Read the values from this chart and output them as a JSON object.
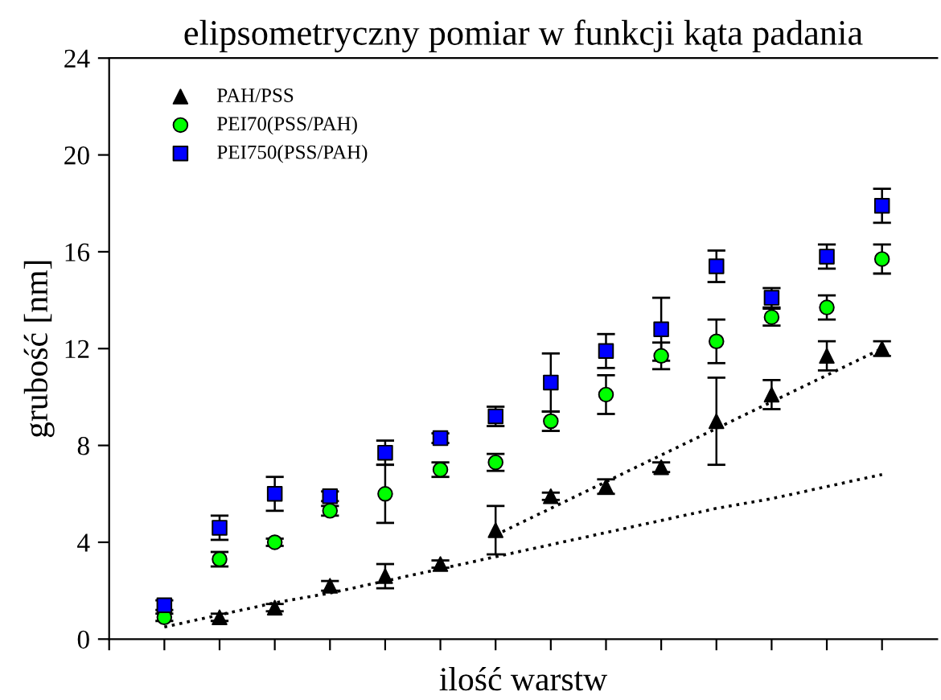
{
  "chart_data": {
    "type": "scatter",
    "title": "elipsometryczny pomiar w funkcji kąta padania",
    "xlabel": "ilość warstw",
    "ylabel": "grubość [nm]",
    "categories": [
      null,
      null,
      null,
      null,
      null,
      null,
      null,
      null,
      null,
      null,
      null,
      null,
      null,
      null
    ],
    "ylim": [
      0,
      24
    ],
    "yticks": [
      0,
      4,
      8,
      12,
      16,
      20,
      24
    ],
    "grid": false,
    "legend": "top left",
    "series": [
      {
        "name": "PAH/PSS",
        "color": "#000000",
        "marker": "triangle",
        "values": [
          null,
          0.9,
          1.3,
          2.2,
          2.6,
          3.1,
          4.5,
          5.9,
          6.3,
          7.1,
          9.0,
          10.1,
          11.7,
          12.0
        ],
        "errors": [
          null,
          0.15,
          0.15,
          0.2,
          0.5,
          0.15,
          1.0,
          0.15,
          0.3,
          0.2,
          1.8,
          0.6,
          0.6,
          0.3
        ]
      },
      {
        "name": "PEI70(PSS/PAH)",
        "color": "#00ff00",
        "marker": "circle",
        "values": [
          0.9,
          3.3,
          4.0,
          5.3,
          6.0,
          7.0,
          7.3,
          9.0,
          10.1,
          11.7,
          12.3,
          13.3,
          13.7,
          15.7
        ],
        "errors": [
          0.15,
          0.3,
          0.15,
          0.2,
          1.2,
          0.3,
          0.35,
          0.4,
          0.8,
          0.55,
          0.9,
          0.35,
          0.5,
          0.6
        ]
      },
      {
        "name": "PEI750(PSS/PAH)",
        "color": "#0000ff",
        "marker": "square",
        "values": [
          1.4,
          4.6,
          6.0,
          5.9,
          7.7,
          8.3,
          9.2,
          10.6,
          11.9,
          12.8,
          15.4,
          14.1,
          15.8,
          17.9
        ],
        "errors": [
          0.2,
          0.5,
          0.7,
          0.2,
          0.5,
          0.2,
          0.4,
          1.2,
          0.7,
          1.3,
          0.65,
          0.4,
          0.5,
          0.7
        ]
      },
      {
        "type": "line",
        "color": "#000000",
        "line_style": "dotted",
        "values": [
          0.5,
          1.0,
          1.5,
          1.9,
          2.4,
          2.9,
          3.4,
          3.9,
          4.4,
          4.9,
          5.4,
          5.8,
          6.3,
          6.8
        ]
      },
      {
        "type": "line",
        "color": "#000000",
        "line_style": "dotted",
        "values": [
          null,
          null,
          null,
          null,
          null,
          null,
          4.3,
          5.4,
          6.5,
          7.6,
          8.7,
          9.8,
          10.9,
          12.0
        ]
      }
    ]
  }
}
